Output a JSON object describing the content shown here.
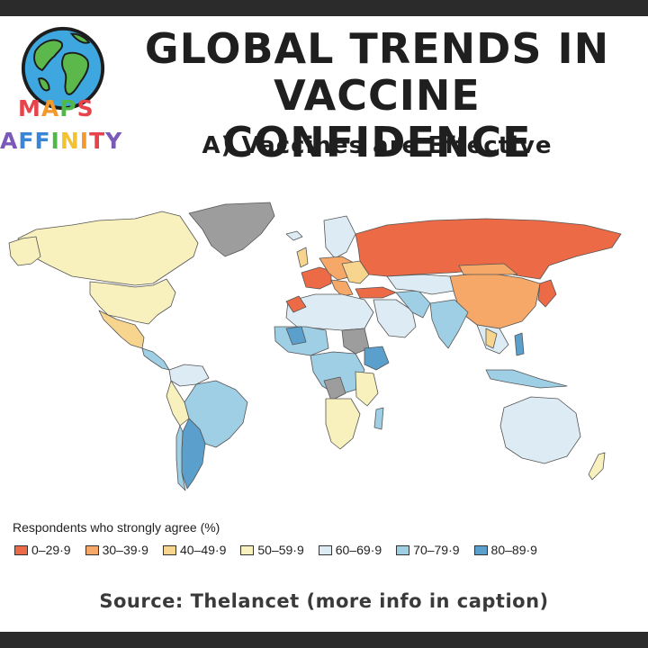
{
  "header": {
    "title_line1": "GLOBAL TRENDS IN",
    "title_line2": "VACCINE CONFIDENCE",
    "subtitle": "A) Vaccines are Effective"
  },
  "brand": {
    "line1": [
      "M",
      "A",
      "P",
      "S"
    ],
    "line2": [
      "A",
      "F",
      "F",
      "I",
      "N",
      "I",
      "T",
      "Y"
    ],
    "line1_colors": [
      "#e8424a",
      "#f29a2e",
      "#4fb848",
      "#e8424a"
    ],
    "line2_colors": [
      "#7a5ab8",
      "#3a86d6",
      "#3a86d6",
      "#4fb848",
      "#f2c230",
      "#f29a2e",
      "#e8424a",
      "#7a5ab8"
    ]
  },
  "legend": {
    "title": "Respondents who strongly agree (%)",
    "items": [
      {
        "label": "0–29·9",
        "color": "#ed6a47"
      },
      {
        "label": "30–39·9",
        "color": "#f5a868"
      },
      {
        "label": "40–49·9",
        "color": "#f7d58e"
      },
      {
        "label": "50–59·9",
        "color": "#f8f1bd"
      },
      {
        "label": "60–69·9",
        "color": "#dcebf4"
      },
      {
        "label": "70–79·9",
        "color": "#9fcfe5"
      },
      {
        "label": "80–89·9",
        "color": "#5b9fcd"
      }
    ]
  },
  "map_colors": {
    "no_data": "#9d9d9d",
    "ocean": "#ffffff",
    "border": "#555555"
  },
  "source": "Source: Thelancet (more info in caption)"
}
